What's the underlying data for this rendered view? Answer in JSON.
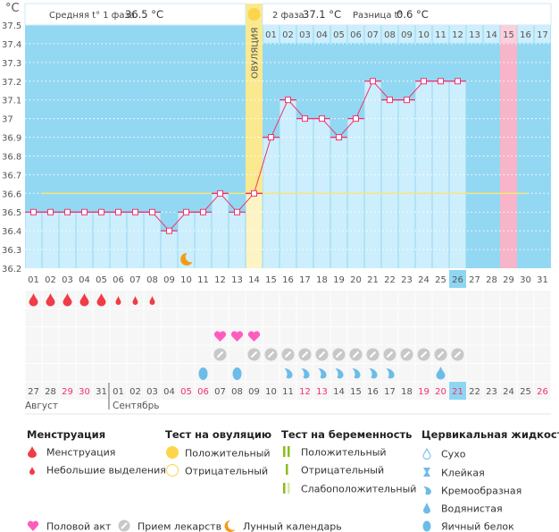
{
  "unit_label": "°C",
  "header": {
    "phase1_label": "Средняя t° 1 фаза",
    "phase1_value": "36.5 °C",
    "phase2_label": "2 фаза",
    "phase2_value": "37.1 °C",
    "diff_label": "Разница t°",
    "diff_value": "0.6 °C",
    "ovulation_label": "ОВУЛЯЦИЯ"
  },
  "colors": {
    "background": "#93d8f2",
    "bar": "#cdeefc",
    "line": "#f0326e",
    "coverline": "#f5e57a",
    "ovulation": "#fbe98f",
    "highlight_day": "#f8b4c8",
    "current_day": "#8fd6f2",
    "weekend": "#f0326e"
  },
  "chart_data": {
    "type": "line",
    "ylabel": "°C",
    "ylim": [
      36.2,
      37.5
    ],
    "yticks": [
      "37.5",
      "37.4",
      "37.3",
      "37.2",
      "37.1",
      "37",
      "36.9",
      "36.8",
      "36.7",
      "36.6",
      "36.5",
      "36.4",
      "36.3",
      "36.2"
    ],
    "grid": true,
    "cycle_days": [
      "01",
      "02",
      "03",
      "04",
      "05",
      "06",
      "07",
      "08",
      "09",
      "10",
      "11",
      "12",
      "13",
      "14",
      "15",
      "16",
      "17",
      "18",
      "19",
      "20",
      "21",
      "22",
      "23",
      "24",
      "25",
      "26",
      "27",
      "28",
      "29",
      "30",
      "31"
    ],
    "temperatures": [
      36.5,
      36.5,
      36.5,
      36.5,
      36.5,
      36.5,
      36.5,
      36.5,
      36.4,
      36.5,
      36.5,
      36.6,
      36.5,
      36.6,
      36.9,
      37.1,
      37.0,
      37.0,
      36.9,
      37.0,
      37.2,
      37.1,
      37.1,
      37.2,
      37.2,
      37.2,
      null,
      null,
      null,
      null,
      null
    ],
    "coverline": 36.6,
    "ovulation_day": 14,
    "current_day": 26,
    "highlight_day": 29,
    "luteal_day_labels": [
      "01",
      "02",
      "03",
      "04",
      "05",
      "06",
      "07",
      "08",
      "09",
      "10",
      "11",
      "12",
      "13",
      "14",
      "15",
      "16",
      "17"
    ],
    "calendar_dates": [
      "27",
      "28",
      "29",
      "30",
      "31",
      "01",
      "02",
      "03",
      "04",
      "05",
      "06",
      "07",
      "08",
      "09",
      "10",
      "11",
      "12",
      "13",
      "14",
      "15",
      "16",
      "17",
      "18",
      "19",
      "20",
      "21",
      "22",
      "23",
      "24",
      "25",
      "26"
    ],
    "calendar_weekend": [
      false,
      false,
      true,
      true,
      false,
      false,
      false,
      false,
      false,
      true,
      true,
      false,
      false,
      false,
      false,
      false,
      true,
      true,
      false,
      false,
      false,
      false,
      false,
      true,
      true,
      true,
      false,
      false,
      false,
      false,
      true
    ],
    "months": [
      "Август",
      "Сентябрь"
    ],
    "menstruation": [
      "heavy",
      "heavy",
      "heavy",
      "heavy",
      "heavy",
      "light",
      "light",
      "light",
      null,
      null,
      null,
      null,
      null,
      null,
      null,
      null,
      null,
      null,
      null,
      null,
      null,
      null,
      null,
      null,
      null,
      null,
      null,
      null,
      null,
      null,
      null
    ],
    "intercourse_days": [
      12,
      13,
      14
    ],
    "medication_days": [
      12,
      14,
      15,
      16,
      17,
      18,
      19,
      20,
      21,
      22,
      23,
      24,
      25,
      26
    ],
    "moon_days": [
      10
    ],
    "cervical_fluid": {
      "11": "egg-white",
      "13": "egg-white",
      "16": "creamy",
      "17": "creamy",
      "18": "creamy",
      "19": "creamy",
      "20": "creamy",
      "21": "creamy",
      "22": "creamy",
      "25": "watery"
    }
  },
  "legend": {
    "menstruation": {
      "title": "Менструация",
      "items": [
        "Менструация",
        "Небольшие выделения"
      ]
    },
    "ovulation_test": {
      "title": "Тест на овуляцию",
      "items": [
        "Положительный",
        "Отрицательный"
      ]
    },
    "pregnancy_test": {
      "title": "Тест на беременность",
      "items": [
        "Положительный",
        "Отрицательный",
        "Слабоположительный"
      ]
    },
    "cervical_fluid": {
      "title": "Цервикальная жидкость",
      "items": [
        "Сухо",
        "Клейкая",
        "Кремообразная",
        "Водянистая",
        "Яичный белок"
      ]
    },
    "other": [
      "Половой акт",
      "Прием лекарств",
      "Лунный календарь"
    ]
  }
}
